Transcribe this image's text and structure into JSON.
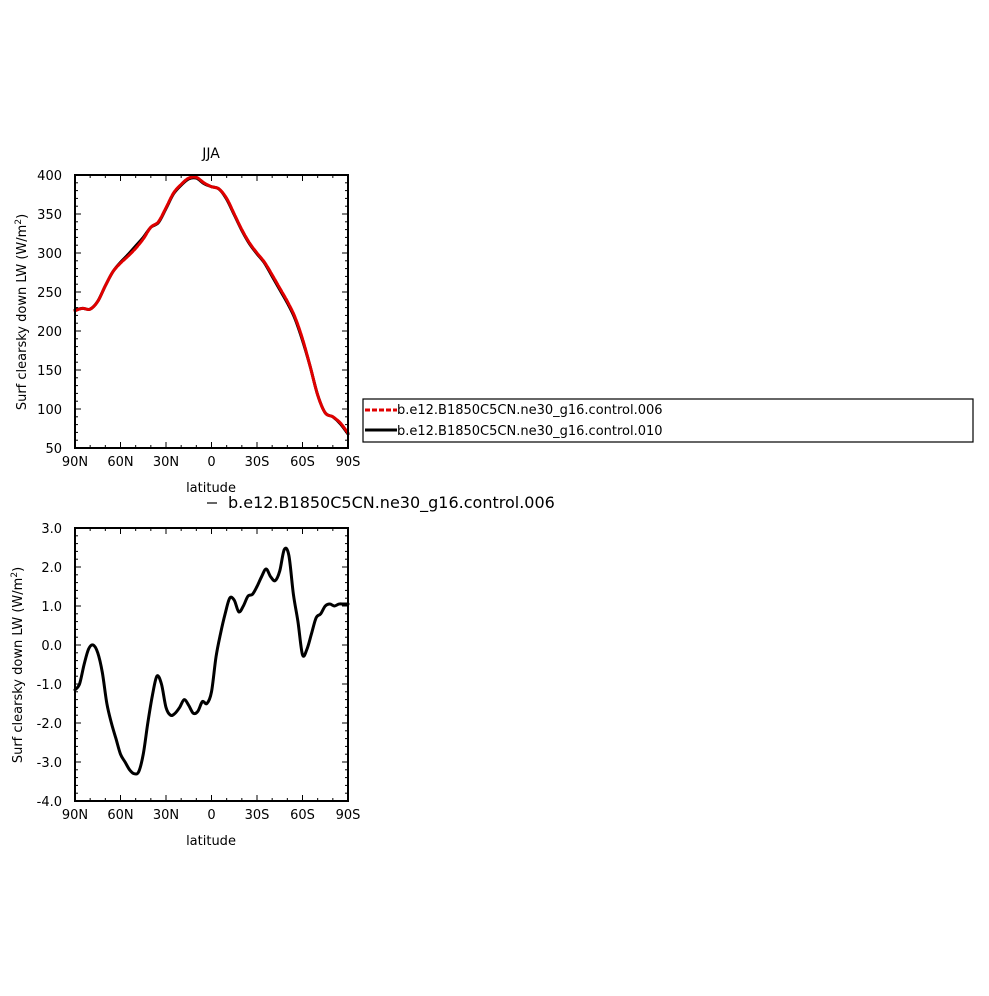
{
  "chart_data": [
    {
      "type": "line",
      "title": "JJA",
      "xlabel": "latitude",
      "ylabel_main": "Surf clearsky down LW (W/m",
      "ylabel_sup": "2",
      "ylabel_close": ")",
      "xlim": [
        90,
        -90
      ],
      "ylim": [
        50,
        400
      ],
      "x_ticks": [
        90,
        60,
        30,
        0,
        -30,
        -60,
        -90
      ],
      "x_tick_labels": [
        "90N",
        "60N",
        "30N",
        "0",
        "30S",
        "60S",
        "90S"
      ],
      "y_ticks": [
        50,
        100,
        150,
        200,
        250,
        300,
        350,
        400
      ],
      "y_tick_labels": [
        "50",
        "100",
        "150",
        "200",
        "250",
        "300",
        "350",
        "400"
      ],
      "legend": {
        "placement": "right",
        "entries": [
          "b.e12.B1850C5CN.ne30_g16.control.006",
          "b.e12.B1850C5CN.ne30_g16.control.010"
        ]
      },
      "series": [
        {
          "name": "b.e12.B1850C5CN.ne30_g16.control.006",
          "color": "#e00000",
          "dashed": true,
          "x": [
            90,
            85,
            80,
            75,
            70,
            65,
            60,
            55,
            50,
            45,
            40,
            35,
            30,
            25,
            20,
            15,
            10,
            5,
            0,
            -5,
            -10,
            -15,
            -20,
            -25,
            -30,
            -35,
            -40,
            -45,
            -50,
            -55,
            -60,
            -65,
            -70,
            -75,
            -80,
            -85,
            -90
          ],
          "y": [
            226,
            229,
            228,
            238,
            258,
            276,
            287,
            296,
            306,
            318,
            333,
            340,
            358,
            377,
            388,
            396,
            397,
            390,
            385,
            382,
            370,
            350,
            330,
            313,
            300,
            288,
            272,
            255,
            238,
            218,
            190,
            155,
            118,
            95,
            90,
            82,
            69
          ]
        },
        {
          "name": "b.e12.B1850C5CN.ne30_g16.control.010",
          "color": "#000000",
          "dashed": false,
          "x": [
            90,
            85,
            80,
            75,
            70,
            65,
            60,
            55,
            50,
            45,
            40,
            35,
            30,
            25,
            20,
            15,
            10,
            5,
            0,
            -5,
            -10,
            -15,
            -20,
            -25,
            -30,
            -35,
            -40,
            -45,
            -50,
            -55,
            -60,
            -65,
            -70,
            -75,
            -80,
            -85,
            -90
          ],
          "y": [
            227,
            229,
            228,
            238,
            258,
            276,
            288,
            298,
            309,
            320,
            333,
            339,
            357,
            376,
            387,
            395,
            396,
            389,
            385,
            382,
            369,
            349,
            329,
            312,
            299,
            287,
            270,
            253,
            236,
            216,
            188,
            155,
            118,
            95,
            90,
            81,
            68
          ]
        }
      ]
    },
    {
      "type": "line",
      "title": "",
      "subtitle": "b.e12.B1850C5CN.ne30_g16.control.006",
      "xlabel": "latitude",
      "ylabel_main": "Surf clearsky down LW (W/m",
      "ylabel_sup": "2",
      "ylabel_close": ")",
      "xlim": [
        90,
        -90
      ],
      "ylim": [
        -4.0,
        3.0
      ],
      "x_ticks": [
        90,
        60,
        30,
        0,
        -30,
        -60,
        -90
      ],
      "x_tick_labels": [
        "90N",
        "60N",
        "30N",
        "0",
        "30S",
        "60S",
        "90S"
      ],
      "y_ticks": [
        -4.0,
        -3.0,
        -2.0,
        -1.0,
        0.0,
        1.0,
        2.0,
        3.0
      ],
      "y_tick_labels": [
        "-4.0",
        "-3.0",
        "-2.0",
        "-1.0",
        "0.0",
        "1.0",
        "2.0",
        "3.0"
      ],
      "series": [
        {
          "color": "#000000",
          "x": [
            90,
            87,
            84,
            81,
            78,
            75,
            72,
            69,
            66,
            63,
            60,
            57,
            54,
            51,
            48,
            45,
            42,
            39,
            36,
            33,
            30,
            27,
            24,
            21,
            18,
            15,
            12,
            9,
            6,
            3,
            0,
            -3,
            -6,
            -9,
            -12,
            -15,
            -18,
            -21,
            -24,
            -27,
            -30,
            -33,
            -36,
            -39,
            -42,
            -45,
            -48,
            -51,
            -54,
            -57,
            -60,
            -63,
            -66,
            -69,
            -72,
            -75,
            -78,
            -81,
            -84,
            -87,
            -90
          ],
          "y": [
            -1.15,
            -1.0,
            -0.5,
            -0.1,
            0.0,
            -0.2,
            -0.7,
            -1.5,
            -2.0,
            -2.4,
            -2.8,
            -3.0,
            -3.2,
            -3.3,
            -3.25,
            -2.8,
            -2.0,
            -1.3,
            -0.8,
            -1.0,
            -1.6,
            -1.8,
            -1.75,
            -1.6,
            -1.4,
            -1.55,
            -1.75,
            -1.7,
            -1.45,
            -1.5,
            -1.2,
            -0.3,
            0.3,
            0.8,
            1.2,
            1.15,
            0.85,
            1.0,
            1.25,
            1.3,
            1.5,
            1.75,
            1.95,
            1.75,
            1.65,
            1.9,
            2.45,
            2.3,
            1.3,
            0.6,
            -0.25,
            -0.1,
            0.3,
            0.7,
            0.8,
            1.0,
            1.05,
            1.0,
            1.05,
            1.05,
            1.05
          ]
        }
      ]
    }
  ]
}
